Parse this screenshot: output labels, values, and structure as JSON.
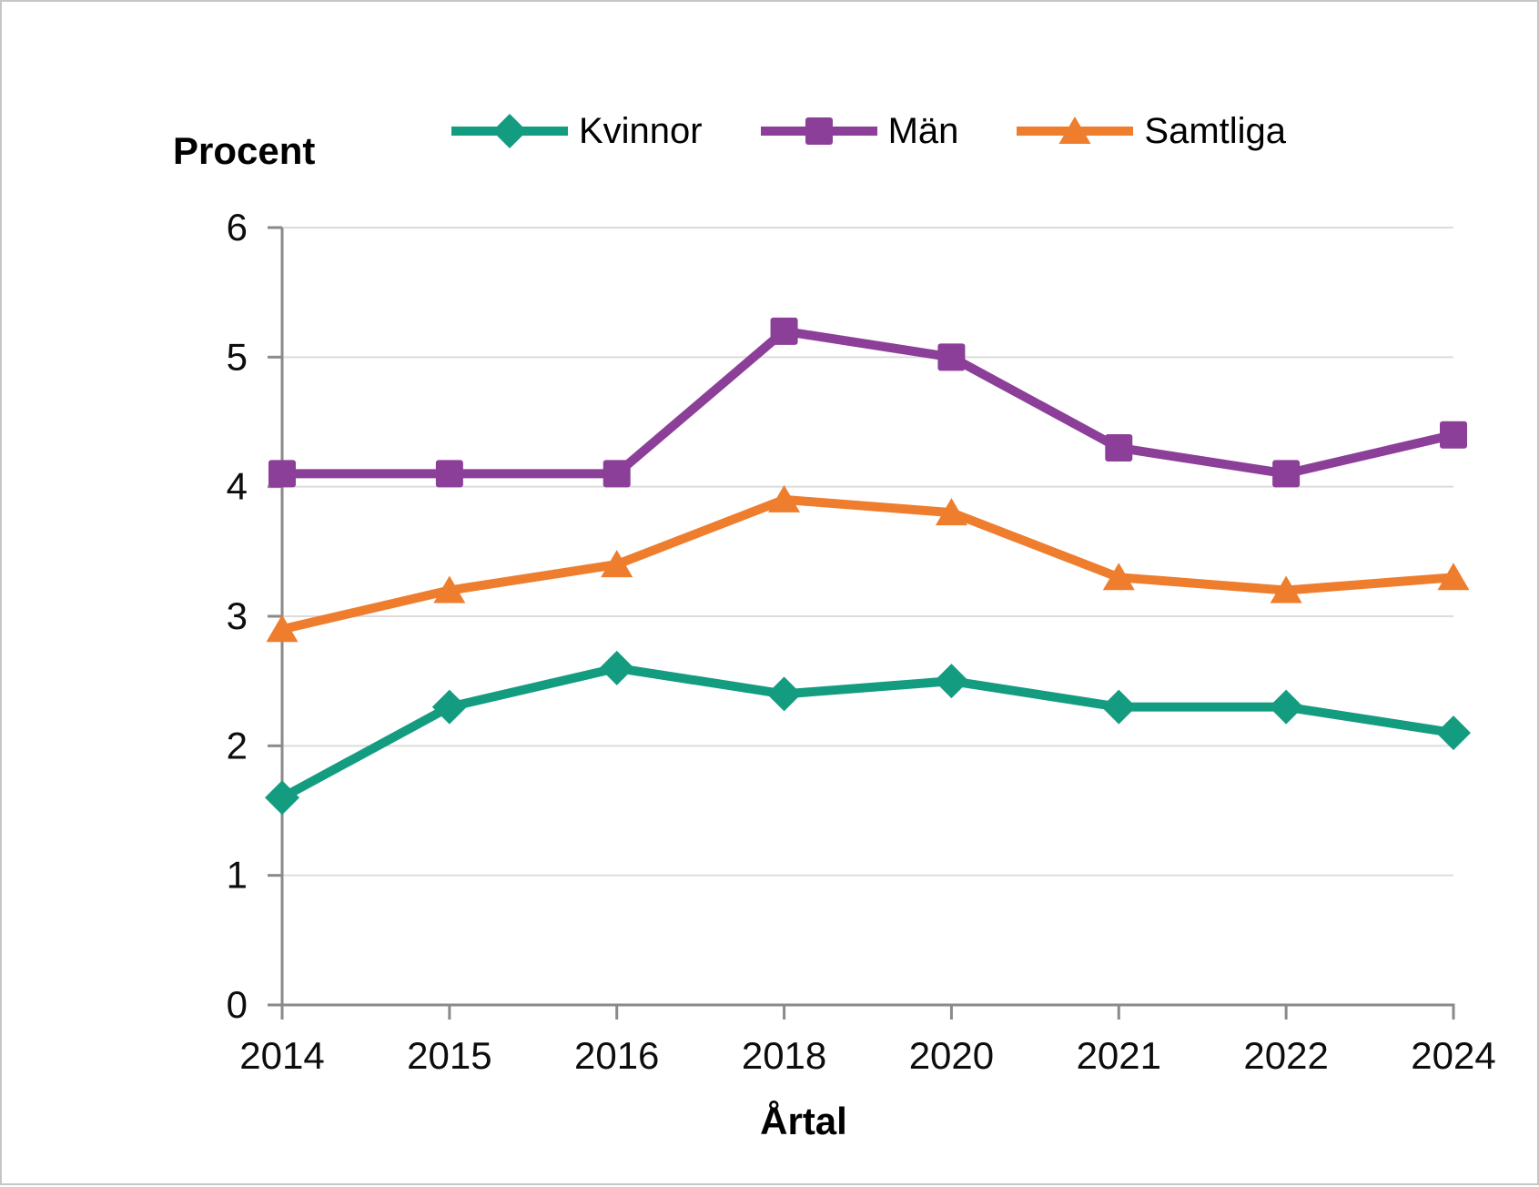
{
  "chart_data": {
    "type": "line",
    "title": "",
    "ylabel": "Procent",
    "xlabel": "Årtal",
    "categories": [
      "2014",
      "2015",
      "2016",
      "2018",
      "2020",
      "2021",
      "2022",
      "2024"
    ],
    "series": [
      {
        "name": "Kvinnor",
        "marker": "diamond",
        "color": "#149C81",
        "values": [
          1.6,
          2.3,
          2.6,
          2.4,
          2.5,
          2.3,
          2.3,
          2.1
        ]
      },
      {
        "name": "Män",
        "marker": "square",
        "color": "#8C3F98",
        "values": [
          4.1,
          4.1,
          4.1,
          5.2,
          5.0,
          4.3,
          4.1,
          4.4
        ]
      },
      {
        "name": "Samtliga",
        "marker": "triangle",
        "color": "#EE7D2E",
        "values": [
          2.9,
          3.2,
          3.4,
          3.9,
          3.8,
          3.3,
          3.2,
          3.3
        ]
      }
    ],
    "ylim": [
      0,
      6
    ],
    "yticks": [
      0,
      1,
      2,
      3,
      4,
      5,
      6
    ],
    "grid": "horizontal",
    "legend_position": "top",
    "axis_color": "#8a8a8a",
    "gridline_color": "#dcdcdc",
    "text_color": "#0d0d0d"
  }
}
